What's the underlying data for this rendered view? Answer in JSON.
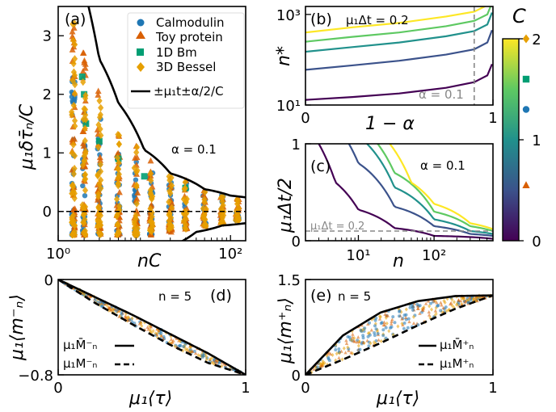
{
  "chart_data": [
    {
      "panel": "(a)",
      "type": "scatter",
      "xscale": "log",
      "xlim": [
        1,
        150
      ],
      "ylim": [
        -0.5,
        3.5
      ],
      "xlabel": "nC",
      "ylabel": "μ1 δτ̄n / C",
      "xticks": [
        "10^0",
        "10^2"
      ],
      "yticks": [
        "0",
        "1",
        "2",
        "3"
      ],
      "annotation": "α = 0.1",
      "legend_position": "top-right",
      "series": [
        {
          "name": "Calmodulin",
          "color": "#1f77b4",
          "marker": "circle",
          "x_values": [
            1.5,
            2,
            3,
            5,
            8,
            12,
            20,
            30,
            50,
            80,
            120
          ],
          "y_range_at_x": [
            [
              -0.4,
              2.3
            ],
            [
              -0.4,
              2.0
            ],
            [
              -0.4,
              1.6
            ],
            [
              -0.4,
              1.2
            ],
            [
              -0.4,
              0.95
            ],
            [
              -0.4,
              0.8
            ],
            [
              -0.35,
              0.6
            ],
            [
              -0.3,
              0.5
            ],
            [
              -0.25,
              0.35
            ],
            [
              -0.2,
              0.3
            ],
            [
              -0.15,
              0.25
            ]
          ]
        },
        {
          "name": "Toy protein",
          "color": "#d95f02",
          "marker": "triangle",
          "x_values": [
            1.5,
            2,
            3,
            5,
            8,
            12,
            20,
            30,
            50,
            80,
            120
          ],
          "y_range_at_x": [
            [
              -0.4,
              3.3
            ],
            [
              -0.4,
              2.8
            ],
            [
              -0.4,
              2.2
            ],
            [
              -0.4,
              1.6
            ],
            [
              -0.4,
              1.2
            ],
            [
              -0.4,
              0.9
            ],
            [
              -0.35,
              0.7
            ],
            [
              -0.3,
              0.55
            ],
            [
              -0.25,
              0.4
            ],
            [
              -0.2,
              0.3
            ],
            [
              -0.15,
              0.25
            ]
          ]
        },
        {
          "name": "1D Bm",
          "color": "#009e73",
          "marker": "square",
          "points": [
            [
              1.9,
              2.3
            ],
            [
              2,
              2.0
            ],
            [
              2.1,
              1.5
            ],
            [
              3,
              1.2
            ],
            [
              5,
              0.9
            ],
            [
              10,
              0.6
            ],
            [
              30,
              0.4
            ]
          ]
        },
        {
          "name": "3D Bessel",
          "color": "#e69f00",
          "marker": "diamond",
          "x_values": [
            1.5,
            2,
            3,
            5,
            8,
            12,
            20,
            30,
            50,
            80,
            120
          ],
          "y_range_at_x": [
            [
              -0.4,
              3.3
            ],
            [
              -0.4,
              2.5
            ],
            [
              -0.4,
              2.0
            ],
            [
              -0.4,
              1.5
            ],
            [
              -0.4,
              1.1
            ],
            [
              -0.35,
              0.85
            ],
            [
              -0.3,
              0.65
            ],
            [
              -0.3,
              0.5
            ],
            [
              -0.25,
              0.35
            ],
            [
              -0.2,
              0.3
            ],
            [
              -0.15,
              0.22
            ]
          ]
        }
      ],
      "bounds": {
        "name": "±μ1 t±α/2 / C",
        "upper_points": [
          [
            2.25,
            3.5
          ],
          [
            3,
            2.6
          ],
          [
            5,
            1.85
          ],
          [
            10,
            1.05
          ],
          [
            20,
            0.65
          ],
          [
            50,
            0.38
          ],
          [
            100,
            0.27
          ],
          [
            150,
            0.24
          ]
        ],
        "lower_points": [
          [
            20,
            -0.6
          ],
          [
            40,
            -0.35
          ],
          [
            80,
            -0.24
          ],
          [
            150,
            -0.2
          ]
        ]
      },
      "zero_line": 0
    },
    {
      "panel": "(b)",
      "type": "line",
      "yscale": "log",
      "xlim": [
        0,
        1
      ],
      "ylim": [
        10,
        1500
      ],
      "xlabel": "1 − α",
      "ylabel": "n*",
      "xticks": [
        "0",
        "1"
      ],
      "yticks": [
        "10^1",
        "10^3"
      ],
      "annotation": "μ1Δt = 0.2",
      "vline": {
        "x": 0.9,
        "label": "α = 0.1"
      },
      "x": [
        0,
        0.25,
        0.5,
        0.75,
        0.9,
        0.97,
        0.995
      ],
      "series": [
        {
          "color": "#440154",
          "values": [
            13,
            15,
            18,
            24,
            32,
            45,
            80
          ]
        },
        {
          "color": "#3b528b",
          "values": [
            60,
            75,
            95,
            130,
            170,
            240,
            450
          ]
        },
        {
          "color": "#21918c",
          "values": [
            150,
            190,
            240,
            330,
            430,
            600,
            1100
          ]
        },
        {
          "color": "#5ec962",
          "values": [
            250,
            320,
            400,
            550,
            720,
            1000,
            1800
          ]
        },
        {
          "color": "#fde725",
          "values": [
            400,
            520,
            650,
            900,
            1150,
            1600,
            2800
          ]
        }
      ]
    },
    {
      "panel": "(c)",
      "type": "line",
      "xscale": "log",
      "xlim": [
        2,
        600
      ],
      "ylim": [
        0,
        1
      ],
      "xlabel": "n",
      "ylabel": "μ1Δt/2",
      "xticks": [
        "10^1",
        "10^2"
      ],
      "yticks": [
        "0",
        "1"
      ],
      "annotation": "α = 0.1",
      "hline": {
        "y": 0.1,
        "label": "μ1Δt = 0.2"
      },
      "series": [
        {
          "color": "#440154",
          "points": [
            [
              3,
              1.0
            ],
            [
              5,
              0.6
            ],
            [
              10,
              0.32
            ],
            [
              30,
              0.13
            ],
            [
              100,
              0.05
            ],
            [
              600,
              0.02
            ]
          ]
        },
        {
          "color": "#3b528b",
          "points": [
            [
              7.5,
              1.0
            ],
            [
              10,
              0.8
            ],
            [
              30,
              0.35
            ],
            [
              100,
              0.15
            ],
            [
              300,
              0.07
            ],
            [
              600,
              0.05
            ]
          ]
        },
        {
          "color": "#21918c",
          "points": [
            [
              13,
              1.0
            ],
            [
              30,
              0.55
            ],
            [
              100,
              0.22
            ],
            [
              300,
              0.1
            ],
            [
              600,
              0.07
            ]
          ]
        },
        {
          "color": "#5ec962",
          "points": [
            [
              18,
              1.0
            ],
            [
              30,
              0.7
            ],
            [
              100,
              0.3
            ],
            [
              300,
              0.15
            ],
            [
              600,
              0.1
            ]
          ]
        },
        {
          "color": "#fde725",
          "points": [
            [
              26,
              1.0
            ],
            [
              50,
              0.6
            ],
            [
              100,
              0.38
            ],
            [
              300,
              0.18
            ],
            [
              600,
              0.12
            ]
          ]
        }
      ]
    },
    {
      "panel": "(d)",
      "type": "scatter",
      "xlim": [
        0,
        1
      ],
      "ylim": [
        -0.8,
        0
      ],
      "xlabel": "μ1⟨τ⟩",
      "ylabel": "μ1⟨m−n⟩",
      "xticks": [
        "0",
        "1"
      ],
      "yticks": [
        "0",
        "−0.8"
      ],
      "annotation": "n = 5",
      "legend_position": "bottom-left",
      "legend": [
        "μ1 M̄−n",
        "μ1 M−n"
      ],
      "bounds": {
        "upper_name": "μ1 M̄−n",
        "lower_name": "μ1 M−n",
        "upper_points": [
          [
            0,
            0
          ],
          [
            0.2,
            -0.15
          ],
          [
            0.4,
            -0.3
          ],
          [
            0.6,
            -0.46
          ],
          [
            0.8,
            -0.62
          ],
          [
            1,
            -0.8
          ]
        ],
        "lower_points": [
          [
            0,
            0
          ],
          [
            0.2,
            -0.2
          ],
          [
            0.4,
            -0.38
          ],
          [
            0.6,
            -0.55
          ],
          [
            0.8,
            -0.7
          ],
          [
            1,
            -0.8
          ]
        ]
      }
    },
    {
      "panel": "(e)",
      "type": "scatter",
      "xlim": [
        0,
        1
      ],
      "ylim": [
        0,
        1.5
      ],
      "xlabel": "μ1⟨τ⟩",
      "ylabel": "μ1⟨m+n⟩",
      "xticks": [
        "0",
        "1"
      ],
      "yticks": [
        "0",
        "1.5"
      ],
      "annotation": "n = 5",
      "legend_position": "bottom-right",
      "legend": [
        "μ1 M̄+n",
        "μ1 M+n"
      ],
      "bounds": {
        "upper_name": "μ1 M̄+n",
        "lower_name": "μ1 M+n",
        "upper_points": [
          [
            0,
            0
          ],
          [
            0.2,
            0.62
          ],
          [
            0.4,
            0.98
          ],
          [
            0.6,
            1.16
          ],
          [
            0.8,
            1.24
          ],
          [
            1,
            1.25
          ]
        ],
        "lower_points": [
          [
            0,
            0
          ],
          [
            0.2,
            0.24
          ],
          [
            0.4,
            0.5
          ],
          [
            0.6,
            0.78
          ],
          [
            0.8,
            1.04
          ],
          [
            1,
            1.25
          ]
        ]
      }
    },
    {
      "type": "colorbar",
      "label": "C",
      "range": [
        0,
        2
      ],
      "ticks": [
        "0",
        "1",
        "2"
      ],
      "colors": [
        "#440154",
        "#3b528b",
        "#21918c",
        "#5ec962",
        "#fde725"
      ],
      "markers": [
        {
          "name": "3D Bessel",
          "at": 2.0,
          "color": "#e69f00"
        },
        {
          "name": "1D Bm",
          "at": 1.6,
          "color": "#009e73"
        },
        {
          "name": "Calmodulin",
          "at": 1.3,
          "color": "#1f77b4"
        },
        {
          "name": "Toy protein",
          "at": 0.55,
          "color": "#d95f02"
        }
      ]
    }
  ],
  "panel_labels": [
    "(a)",
    "(b)",
    "(c)",
    "(d)",
    "(e)"
  ],
  "text": {
    "a_xlabel": "nC",
    "a_ylabel": "μ₁δτ̄ₙ/C",
    "a_ann": "α = 0.1",
    "a_leg": [
      "Calmodulin",
      "Toy protein",
      "1D Bm",
      "3D Bessel",
      "±μ₁t±α/2/C"
    ],
    "a_xt": [
      "10⁰",
      "10²"
    ],
    "a_yt": [
      "0",
      "1",
      "2",
      "3"
    ],
    "b_ylabel": "n*",
    "b_xlabel": "1 − α",
    "b_ann": "μ₁Δt = 0.2",
    "b_vl": "α = 0.1",
    "b_xt": [
      "0",
      "1"
    ],
    "b_yt": [
      "10¹",
      "10³"
    ],
    "c_ylabel": "μ₁Δt/2",
    "c_xlabel": "n",
    "c_ann": "α = 0.1",
    "c_hl": "μ₁Δt = 0.2",
    "c_xt": [
      "10¹",
      "10²"
    ],
    "c_yt": [
      "0",
      "1"
    ],
    "d_ylabel": "μ₁⟨m⁻ₙ⟩",
    "d_xlabel": "μ₁⟨τ⟩",
    "d_ann": "n = 5",
    "d_leg": [
      "μ₁M̄⁻ₙ",
      "μ₁M⁻ₙ"
    ],
    "d_xt": [
      "0",
      "1"
    ],
    "d_yt": [
      "0",
      "−0.8"
    ],
    "e_ylabel": "μ₁⟨m⁺ₙ⟩",
    "e_xlabel": "μ₁⟨τ⟩",
    "e_ann": "n = 5",
    "e_leg": [
      "μ₁M̄⁺ₙ",
      "μ₁M⁺ₙ"
    ],
    "e_xt": [
      "0",
      "1"
    ],
    "e_yt": [
      "0",
      "1.5"
    ],
    "cb_label": "C",
    "cb_t": [
      "0",
      "1",
      "2"
    ]
  }
}
